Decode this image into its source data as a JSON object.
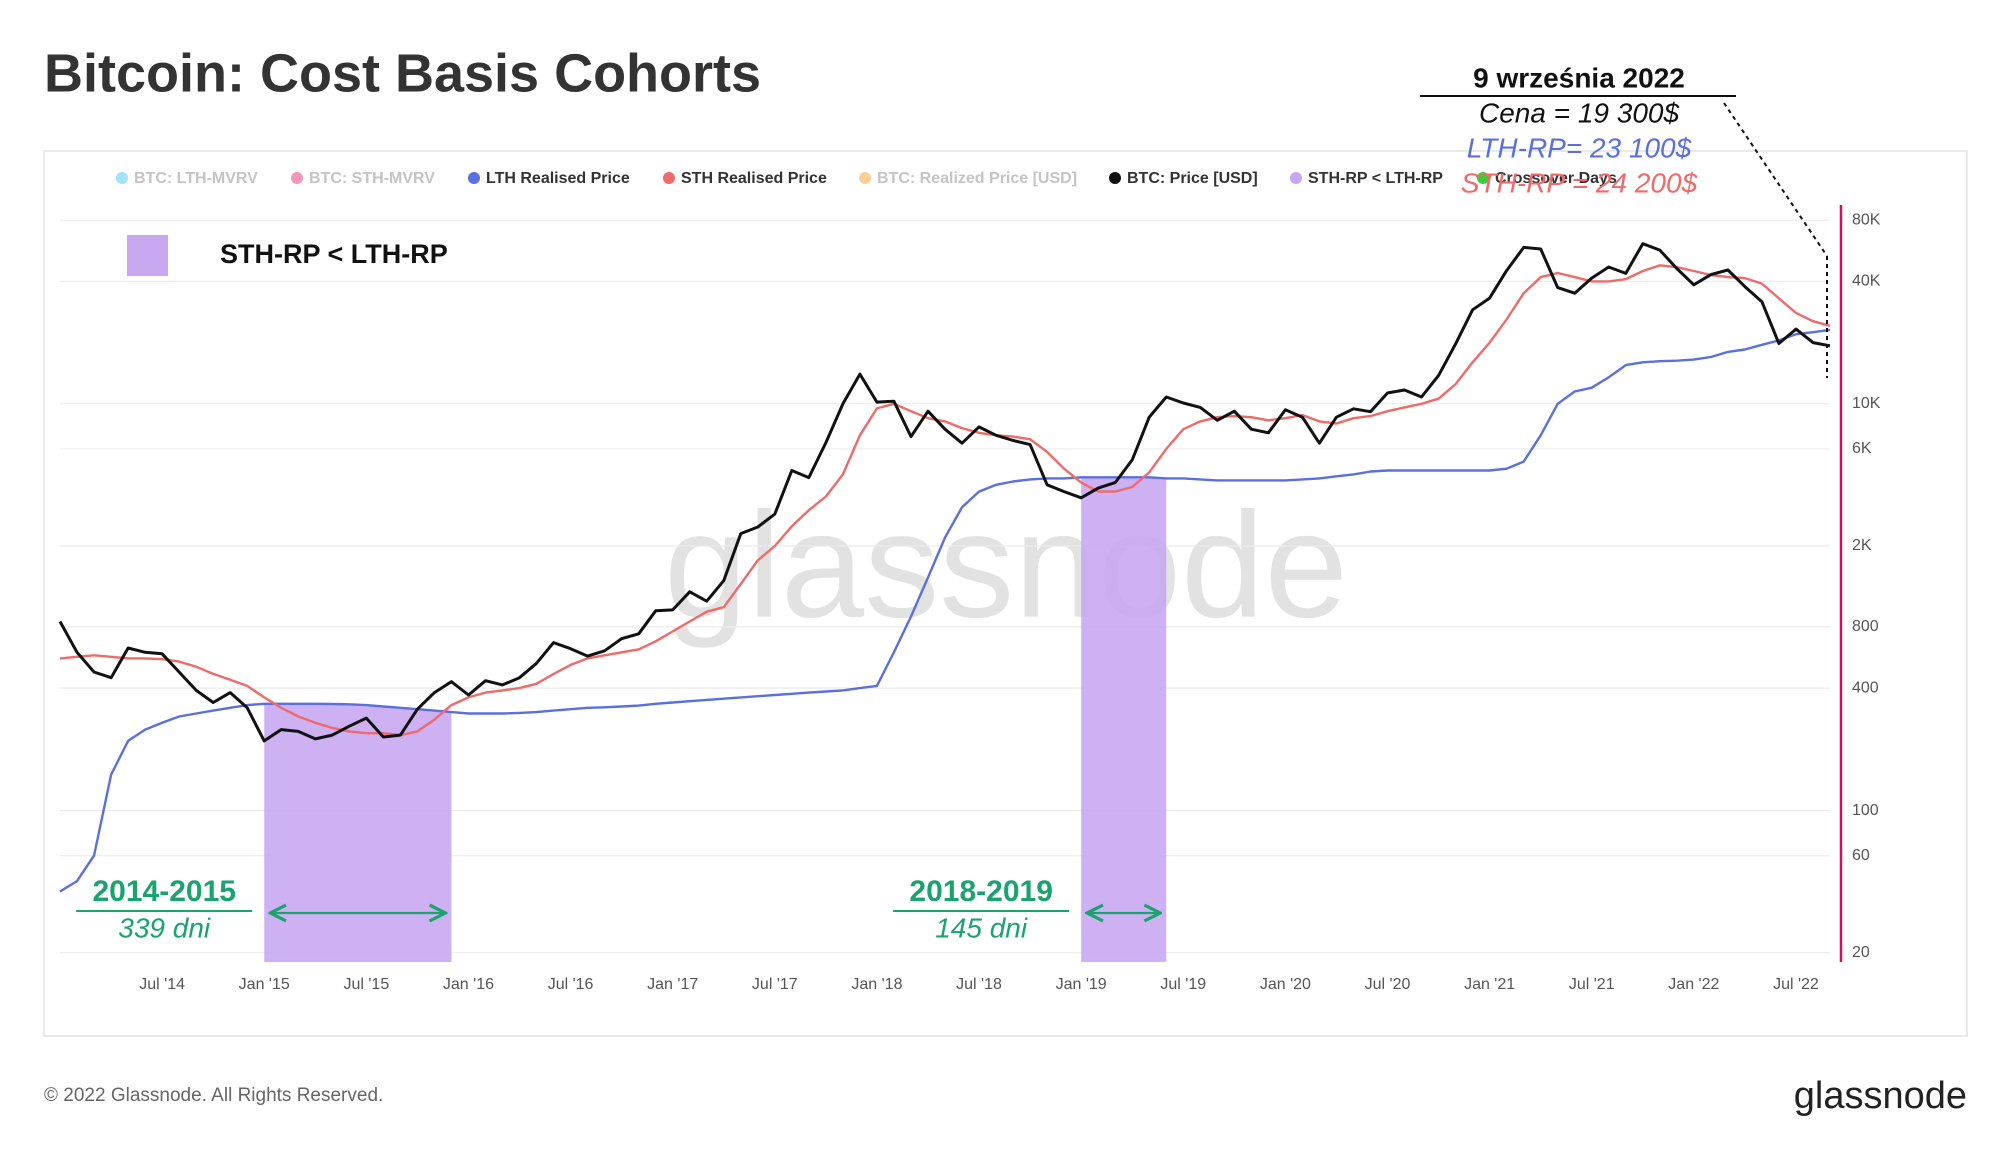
{
  "chart_data": {
    "type": "line",
    "title": "Bitcoin: Cost Basis Cohorts",
    "log_scale": true,
    "grid": true,
    "xlim": [
      "2014-01",
      "2022-09"
    ],
    "xticks": [
      {
        "value": "2014-07",
        "label": "Jul '14"
      },
      {
        "value": "2015-01",
        "label": "Jan '15"
      },
      {
        "value": "2015-07",
        "label": "Jul '15"
      },
      {
        "value": "2016-01",
        "label": "Jan '16"
      },
      {
        "value": "2016-07",
        "label": "Jul '16"
      },
      {
        "value": "2017-01",
        "label": "Jan '17"
      },
      {
        "value": "2017-07",
        "label": "Jul '17"
      },
      {
        "value": "2018-01",
        "label": "Jan '18"
      },
      {
        "value": "2018-07",
        "label": "Jul '18"
      },
      {
        "value": "2019-01",
        "label": "Jan '19"
      },
      {
        "value": "2019-07",
        "label": "Jul '19"
      },
      {
        "value": "2020-01",
        "label": "Jan '20"
      },
      {
        "value": "2020-07",
        "label": "Jul '20"
      },
      {
        "value": "2021-01",
        "label": "Jan '21"
      },
      {
        "value": "2021-07",
        "label": "Jul '21"
      },
      {
        "value": "2022-01",
        "label": "Jan '22"
      },
      {
        "value": "2022-07",
        "label": "Jul '22"
      }
    ],
    "ylim": [
      18,
      95000
    ],
    "yticks": [
      20,
      60,
      100,
      400,
      800,
      {
        "value": 2000,
        "label": "2K"
      },
      {
        "value": 6000,
        "label": "6K"
      },
      {
        "value": 10000,
        "label": "10K"
      },
      {
        "value": 40000,
        "label": "40K"
      },
      {
        "value": 80000,
        "label": "80K"
      }
    ],
    "x": [
      "2014-01",
      "2014-02",
      "2014-03",
      "2014-04",
      "2014-05",
      "2014-06",
      "2014-07",
      "2014-08",
      "2014-09",
      "2014-10",
      "2014-11",
      "2014-12",
      "2015-01",
      "2015-02",
      "2015-03",
      "2015-04",
      "2015-05",
      "2015-06",
      "2015-07",
      "2015-08",
      "2015-09",
      "2015-10",
      "2015-11",
      "2015-12",
      "2016-01",
      "2016-02",
      "2016-03",
      "2016-04",
      "2016-05",
      "2016-06",
      "2016-07",
      "2016-08",
      "2016-09",
      "2016-10",
      "2016-11",
      "2016-12",
      "2017-01",
      "2017-02",
      "2017-03",
      "2017-04",
      "2017-05",
      "2017-06",
      "2017-07",
      "2017-08",
      "2017-09",
      "2017-10",
      "2017-11",
      "2017-12",
      "2018-01",
      "2018-02",
      "2018-03",
      "2018-04",
      "2018-05",
      "2018-06",
      "2018-07",
      "2018-08",
      "2018-09",
      "2018-10",
      "2018-11",
      "2018-12",
      "2019-01",
      "2019-02",
      "2019-03",
      "2019-04",
      "2019-05",
      "2019-06",
      "2019-07",
      "2019-08",
      "2019-09",
      "2019-10",
      "2019-11",
      "2019-12",
      "2020-01",
      "2020-02",
      "2020-03",
      "2020-04",
      "2020-05",
      "2020-06",
      "2020-07",
      "2020-08",
      "2020-09",
      "2020-10",
      "2020-11",
      "2020-12",
      "2021-01",
      "2021-02",
      "2021-03",
      "2021-04",
      "2021-05",
      "2021-06",
      "2021-07",
      "2021-08",
      "2021-09",
      "2021-10",
      "2021-11",
      "2021-12",
      "2022-01",
      "2022-02",
      "2022-03",
      "2022-04",
      "2022-05",
      "2022-06",
      "2022-07",
      "2022-08",
      "2022-09"
    ],
    "series": [
      {
        "name": "BTC: LTH-MVRV",
        "color": "#2ec4f0",
        "visible": false
      },
      {
        "name": "BTC: STH-MVRV",
        "color": "#e0186c",
        "visible": false
      },
      {
        "name": "LTH Realised Price",
        "color": "#5b6fe0",
        "visible": true,
        "values": [
          40,
          45,
          60,
          150,
          220,
          250,
          270,
          290,
          300,
          310,
          320,
          330,
          335,
          335,
          335,
          335,
          334,
          333,
          330,
          325,
          320,
          315,
          310,
          305,
          300,
          300,
          300,
          302,
          305,
          310,
          315,
          320,
          322,
          325,
          328,
          335,
          340,
          345,
          350,
          355,
          360,
          365,
          370,
          375,
          380,
          385,
          390,
          400,
          410,
          600,
          900,
          1400,
          2200,
          3100,
          3700,
          4000,
          4150,
          4250,
          4300,
          4300,
          4350,
          4350,
          4350,
          4350,
          4350,
          4300,
          4300,
          4250,
          4200,
          4200,
          4200,
          4200,
          4200,
          4250,
          4300,
          4400,
          4500,
          4650,
          4700,
          4700,
          4700,
          4700,
          4700,
          4700,
          4700,
          4800,
          5200,
          7000,
          10000,
          11500,
          12000,
          13500,
          15500,
          16000,
          16200,
          16300,
          16500,
          17000,
          18000,
          18500,
          19500,
          20500,
          22000,
          22500,
          23100
        ]
      },
      {
        "name": "STH Realised Price",
        "color": "#ef6a6a",
        "visible": true,
        "values": [
          560,
          570,
          580,
          570,
          560,
          560,
          555,
          540,
          510,
          470,
          440,
          410,
          360,
          320,
          290,
          270,
          255,
          245,
          240,
          240,
          235,
          245,
          280,
          330,
          360,
          380,
          390,
          400,
          420,
          470,
          520,
          560,
          580,
          600,
          620,
          680,
          760,
          850,
          950,
          1000,
          1300,
          1700,
          2000,
          2500,
          3000,
          3500,
          4500,
          7000,
          9500,
          10000,
          9200,
          8500,
          8200,
          7600,
          7200,
          7000,
          6900,
          6700,
          5800,
          4800,
          4100,
          3700,
          3700,
          3900,
          4600,
          6000,
          7500,
          8200,
          8600,
          8700,
          8600,
          8300,
          8500,
          8800,
          8200,
          8000,
          8500,
          8700,
          9200,
          9600,
          10000,
          10600,
          12500,
          16000,
          20000,
          26000,
          35000,
          42000,
          44000,
          42000,
          40000,
          40000,
          41000,
          45000,
          48000,
          47000,
          45000,
          43000,
          42000,
          41500,
          39000,
          33000,
          28000,
          25500,
          24200
        ]
      },
      {
        "name": "BTC: Realized Price [USD]",
        "color": "#f7931a",
        "visible": false
      },
      {
        "name": "BTC: Price [USD]",
        "color": "#111111",
        "visible": true,
        "values": [
          850,
          600,
          480,
          450,
          630,
          600,
          590,
          480,
          390,
          340,
          380,
          320,
          220,
          250,
          245,
          225,
          235,
          260,
          285,
          230,
          235,
          315,
          380,
          430,
          370,
          435,
          415,
          450,
          530,
          670,
          625,
          575,
          610,
          700,
          740,
          960,
          970,
          1190,
          1070,
          1350,
          2300,
          2480,
          2870,
          4700,
          4340,
          6450,
          10000,
          14000,
          10200,
          10300,
          6900,
          9200,
          7500,
          6400,
          7700,
          7000,
          6600,
          6300,
          4000,
          3700,
          3450,
          3850,
          4100,
          5300,
          8600,
          10800,
          10100,
          9600,
          8300,
          9200,
          7500,
          7200,
          9350,
          8600,
          6400,
          8600,
          9450,
          9150,
          11300,
          11700,
          10800,
          13800,
          19700,
          29000,
          33100,
          45200,
          58800,
          57700,
          37300,
          35000,
          41500,
          47100,
          43800,
          61300,
          57000,
          46300,
          38500,
          43200,
          45500,
          37700,
          31800,
          19800,
          23300,
          20000,
          19300
        ]
      },
      {
        "name": "STH-RP < LTH-RP",
        "color": "#c9a8f2",
        "visible": true,
        "regions": [
          {
            "start": "2015-01",
            "end": "2015-12",
            "label": "2014-2015",
            "duration": "339 dni"
          },
          {
            "start": "2019-01",
            "end": "2019-06",
            "label": "2018-2019",
            "duration": "145 dni"
          }
        ]
      },
      {
        "name": "Crossover Days",
        "color": "#3ecb3e",
        "visible": true
      }
    ],
    "region_label_color": "#1aa36f",
    "callout": {
      "date": "9 września 2022",
      "lines": [
        {
          "text": "Cena = 19 300$",
          "color": "#111111"
        },
        {
          "text": "LTH-RP= 23 100$",
          "color": "#5b6fe0"
        },
        {
          "text": "STH-RP = 24 200$",
          "color": "#ef6a6a"
        }
      ]
    },
    "watermark": "glassnode",
    "footer": "© 2022 Glassnode. All Rights Reserved.",
    "logo": "glassnode"
  }
}
